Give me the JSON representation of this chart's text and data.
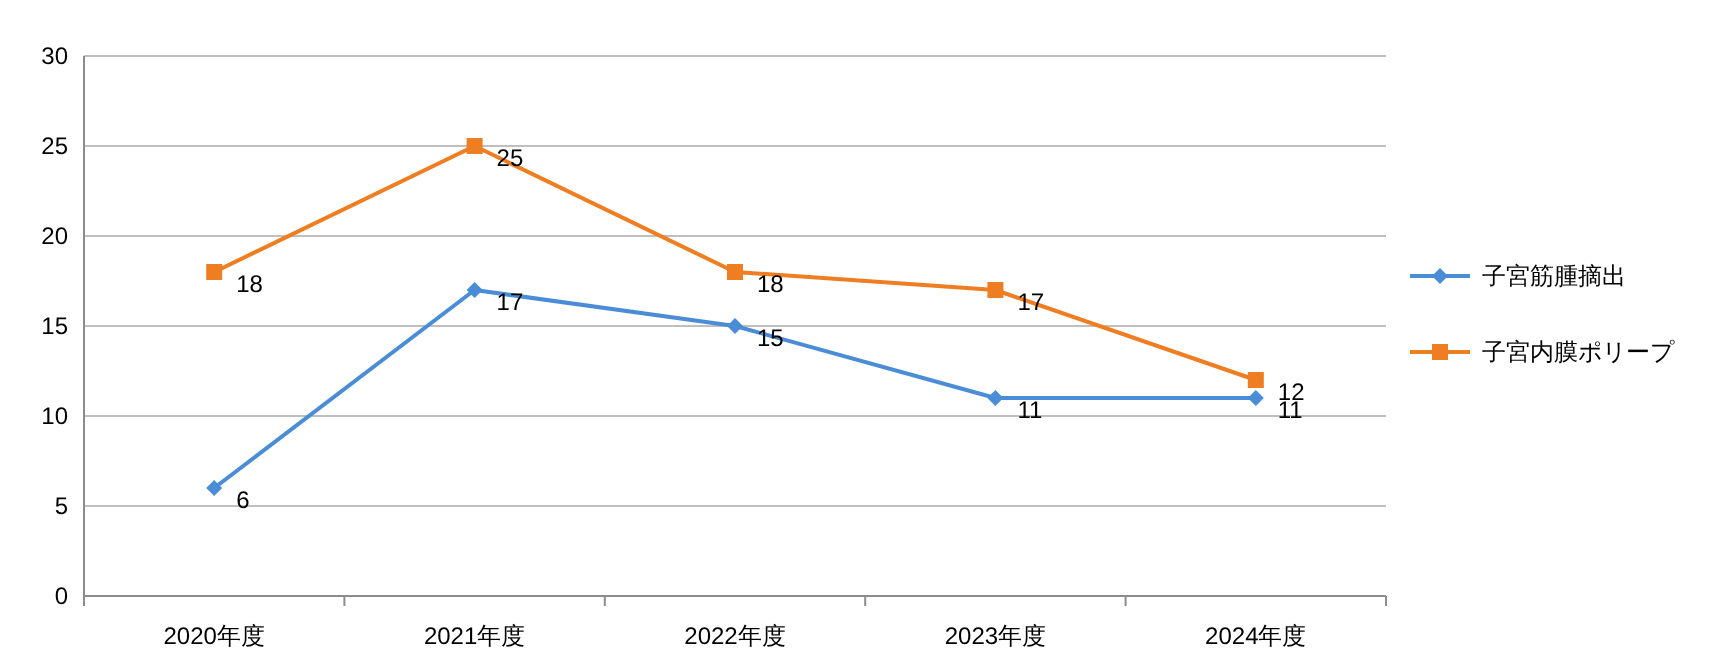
{
  "chart_data": {
    "type": "line",
    "categories": [
      "2020年度",
      "2021年度",
      "2022年度",
      "2023年度",
      "2024年度"
    ],
    "series": [
      {
        "name": "子宮筋腫摘出",
        "color": "#4a8dd6",
        "marker": "diamond",
        "values": [
          6,
          17,
          15,
          11,
          11
        ]
      },
      {
        "name": "子宮内膜ポリープ",
        "color": "#ef7d22",
        "marker": "square",
        "values": [
          18,
          25,
          18,
          17,
          12
        ]
      }
    ],
    "ylim": [
      0,
      30
    ],
    "yticks": [
      0,
      5,
      10,
      15,
      20,
      25,
      30
    ],
    "grid": "y",
    "legend": "right",
    "data_labels": true,
    "line_style": "solid"
  }
}
